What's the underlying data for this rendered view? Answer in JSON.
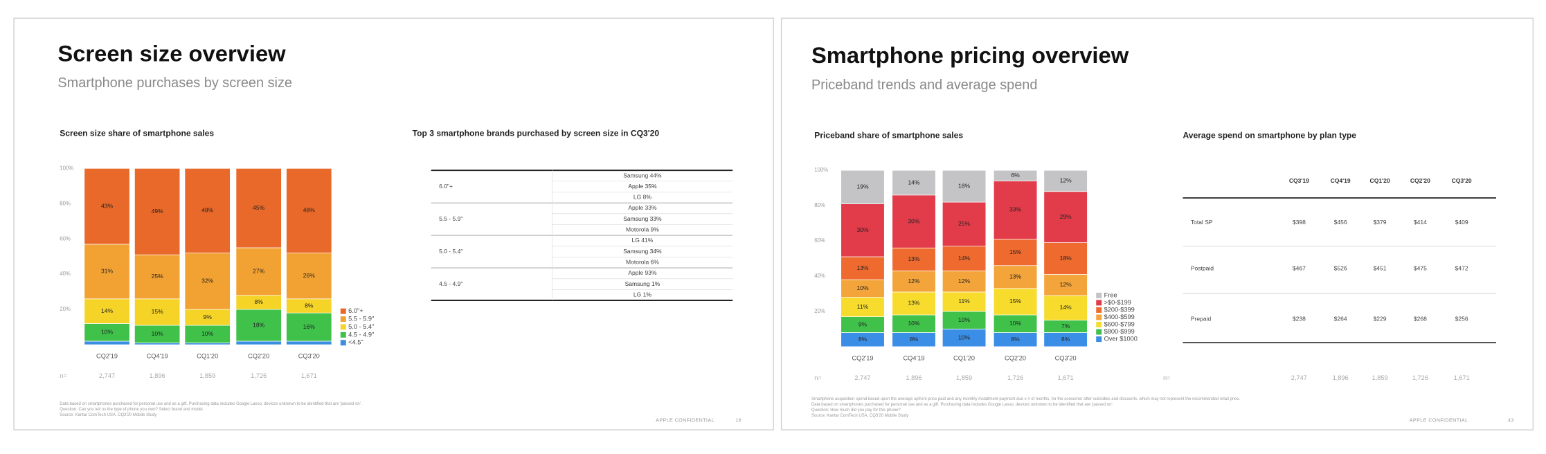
{
  "slides": [
    {
      "title": "Screen size overview",
      "subtitle": "Smartphone purchases by screen size",
      "chart": {
        "type": "bar",
        "stacked": true,
        "title": "Screen size share of smartphone sales",
        "categories": [
          "CQ2'19",
          "CQ4'19",
          "CQ1'20",
          "CQ2'20",
          "CQ3'20"
        ],
        "series": [
          {
            "name": "6.0\"+",
            "color": "#e8692a",
            "values": [
              43,
              49,
              48,
              45,
              48
            ],
            "value_labels": [
              "43%",
              "49%",
              "48%",
              "45%",
              "48%"
            ]
          },
          {
            "name": "5.5 - 5.9\"",
            "color": "#f2a233",
            "values": [
              31,
              25,
              32,
              27,
              26
            ],
            "value_labels": [
              "31%",
              "25%",
              "32%",
              "27%",
              "26%"
            ]
          },
          {
            "name": "5.0 - 5.4\"",
            "color": "#f5d327",
            "values": [
              14,
              15,
              9,
              8,
              8
            ],
            "value_labels": [
              "14%",
              "15%",
              "9%",
              "8%",
              "8%"
            ]
          },
          {
            "name": "4.5 - 4.9\"",
            "color": "#3fc14a",
            "values": [
              10,
              10,
              10,
              18,
              16
            ],
            "value_labels": [
              "10%",
              "10%",
              "10%",
              "18%",
              "16%"
            ]
          },
          {
            "name": "<4.5\"",
            "color": "#3a8fe0",
            "values": [
              2,
              1,
              1,
              2,
              2
            ]
          }
        ],
        "ylim": [
          0,
          100
        ],
        "yticks": [
          {
            "value": 20,
            "label": "20%"
          },
          {
            "value": 40,
            "label": "40%"
          },
          {
            "value": 60,
            "label": "60%"
          },
          {
            "value": 80,
            "label": "80%"
          },
          {
            "value": 100,
            "label": "100%"
          }
        ],
        "legend": "right",
        "n_label": "n=",
        "n_values": [
          "2,747",
          "1,896",
          "1,859",
          "1,726",
          "1,671"
        ]
      },
      "table": {
        "title": "Top 3 smartphone brands purchased by screen size in CQ3'20",
        "rows": [
          {
            "label": "6.0\"+",
            "brands": [
              "Samsung 44%",
              "Apple 35%",
              "LG 8%"
            ]
          },
          {
            "label": "5.5 - 5.9\"",
            "brands": [
              "Apple 33%",
              "Samsung 33%",
              "Motorola 9%"
            ]
          },
          {
            "label": "5.0 - 5.4\"",
            "brands": [
              "LG 41%",
              "Samsung 34%",
              "Motorola 6%"
            ]
          },
          {
            "label": "4.5 - 4.9\"",
            "brands": [
              "Apple 93%",
              "Samsung 1%",
              "LG 1%"
            ]
          }
        ]
      },
      "footnotes": [
        "Data based on smartphones purchased for personal use and as a gift. Purchasing data includes Google Lasso, devices unknown to be identified that are 'passed on'.",
        "Question: Can you tell us the type of phone you own? Select brand and model.",
        "Source: Kantar ComTech USA, CQ3'20 Mobile Study"
      ],
      "confidential": "APPLE CONFIDENTIAL",
      "page": 16
    },
    {
      "title": "Smartphone pricing overview",
      "subtitle": "Priceband trends and average spend",
      "chart": {
        "type": "bar",
        "stacked": true,
        "title": "Priceband share of smartphone sales",
        "categories": [
          "CQ2'19",
          "CQ4'19",
          "CQ1'20",
          "CQ2'20",
          "CQ3'20"
        ],
        "series": [
          {
            "name": "Free",
            "color": "#c4c4c6",
            "values": [
              19,
              14,
              18,
              6,
              12
            ],
            "value_labels": [
              "19%",
              "14%",
              "18%",
              "6%",
              "12%"
            ]
          },
          {
            "name": ">$0-$199",
            "color": "#e23b4a",
            "values": [
              30,
              30,
              25,
              33,
              29
            ],
            "value_labels": [
              "30%",
              "30%",
              "25%",
              "33%",
              "29%"
            ]
          },
          {
            "name": "$200-$399",
            "color": "#ee6a2f",
            "values": [
              13,
              13,
              14,
              15,
              18
            ],
            "value_labels": [
              "13%",
              "13%",
              "14%",
              "15%",
              "18%"
            ]
          },
          {
            "name": "$400-$599",
            "color": "#f3a43a",
            "values": [
              10,
              12,
              12,
              13,
              12
            ],
            "value_labels": [
              "10%",
              "12%",
              "12%",
              "13%",
              "12%"
            ]
          },
          {
            "name": "$600-$799",
            "color": "#f7dc2e",
            "values": [
              11,
              13,
              11,
              15,
              14
            ],
            "value_labels": [
              "11%",
              "13%",
              "11%",
              "15%",
              "14%"
            ]
          },
          {
            "name": "$800-$999",
            "color": "#3fc14a",
            "values": [
              9,
              10,
              10,
              10,
              7
            ],
            "value_labels": [
              "9%",
              "10%",
              "10%",
              "10%",
              "7%"
            ]
          },
          {
            "name": "Over $1000",
            "color": "#3b8ee6",
            "values": [
              8,
              8,
              10,
              8,
              8
            ],
            "value_labels": [
              "8%",
              "8%",
              "10%",
              "8%",
              "8%"
            ]
          }
        ],
        "ylim": [
          0,
          100
        ],
        "yticks": [
          {
            "value": 20,
            "label": "20%"
          },
          {
            "value": 40,
            "label": "40%"
          },
          {
            "value": 60,
            "label": "60%"
          },
          {
            "value": 80,
            "label": "80%"
          },
          {
            "value": 100,
            "label": "100%"
          }
        ],
        "legend": "right",
        "n_label": "n=",
        "n_values": [
          "2,747",
          "1,896",
          "1,859",
          "1,726",
          "1,671"
        ]
      },
      "table": {
        "title": "Average spend on smartphone by plan type",
        "columns": [
          "CQ3'19",
          "CQ4'19",
          "CQ1'20",
          "CQ2'20",
          "CQ3'20"
        ],
        "rows": [
          {
            "label": "Total SP",
            "values": [
              "$398",
              "$456",
              "$379",
              "$414",
              "$409"
            ]
          },
          {
            "label": "Postpaid",
            "values": [
              "$467",
              "$526",
              "$451",
              "$475",
              "$472"
            ]
          },
          {
            "label": "Prepaid",
            "values": [
              "$238",
              "$264",
              "$229",
              "$268",
              "$256"
            ]
          }
        ],
        "n_label": "n=",
        "n_values": [
          "2,747",
          "1,896",
          "1,859",
          "1,726",
          "1,671"
        ]
      },
      "footnotes": [
        "Smartphone acquisition spend based upon the average upfront price paid and any monthly installment payment due x # of months, for the consumer after subsidies and discounts, which may not represent the recommended retail price.",
        "Data based on smartphones purchased for personal use and as a gift. Purchasing data includes Google Lasso, devices unknown to be identified that are 'passed on'.",
        "Question: How much did you pay for this phone?",
        "Source: Kantar ComTech USA, CQ3'20 Mobile Study"
      ],
      "confidential": "APPLE CONFIDENTIAL",
      "page": 43
    }
  ]
}
